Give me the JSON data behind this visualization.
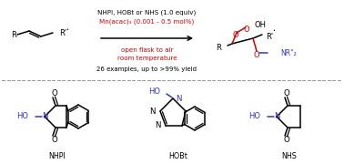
{
  "background_color": "#ffffff",
  "top_text": {
    "line1": "NHPI, HOBt or NHS (1.0 equiv)",
    "line1_color": "#000000",
    "line2": "Mn(acac)₃ (0.001 - 0.5 mol%)",
    "line2_color": "#cc0000",
    "line3": "open flask to air",
    "line3_color": "#cc0000",
    "line4": "room temperature",
    "line4_color": "#cc0000",
    "line5": "26 examples, up to >99% yield",
    "line5_color": "#000000"
  },
  "ho_n_color": "#3333cc",
  "o_color": "#cc0000",
  "black": "#000000"
}
